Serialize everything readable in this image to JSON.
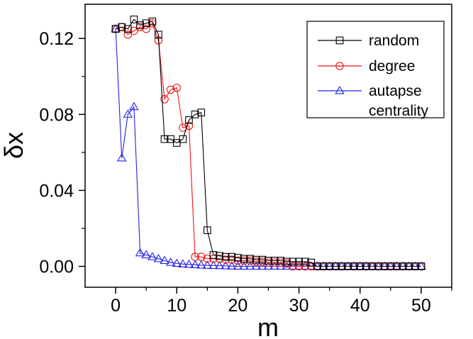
{
  "chart_data": {
    "type": "line",
    "xlabel": "m",
    "ylabel": "δx",
    "xlim": [
      -5,
      55
    ],
    "ylim": [
      -0.011,
      0.138
    ],
    "xticks": [
      "0",
      "10",
      "20",
      "30",
      "40",
      "50"
    ],
    "yticks": [
      "0.00",
      "0.04",
      "0.08",
      "0.12"
    ],
    "legend_position": "top-right",
    "series": [
      {
        "name": "random",
        "color": "#000000",
        "marker": "square",
        "x": [
          0,
          1,
          2,
          3,
          4,
          5,
          6,
          7,
          8,
          9,
          10,
          11,
          12,
          13,
          14,
          15,
          16,
          17,
          18,
          19,
          20,
          21,
          22,
          23,
          24,
          25,
          26,
          27,
          28,
          29,
          30,
          31,
          32,
          33,
          34,
          35,
          36,
          37,
          38,
          39,
          40,
          41,
          42,
          43,
          44,
          45,
          46,
          47,
          48,
          49,
          50
        ],
        "y": [
          0.125,
          0.126,
          0.125,
          0.13,
          0.127,
          0.128,
          0.129,
          0.122,
          0.067,
          0.067,
          0.065,
          0.067,
          0.077,
          0.08,
          0.081,
          0.019,
          0.006,
          0.0055,
          0.005,
          0.005,
          0.0045,
          0.004,
          0.004,
          0.0035,
          0.0035,
          0.003,
          0.003,
          0.003,
          0.0025,
          0.0025,
          0.0025,
          0.0025,
          0.002,
          0.0,
          0.0,
          0.0,
          0.0,
          0.0,
          0.0,
          0.0,
          0.0,
          0.0,
          0.0,
          0.0,
          0.0,
          0.0,
          0.0,
          0.0,
          0.0,
          0.0,
          0.0
        ]
      },
      {
        "name": "degree",
        "color": "#ee1111",
        "marker": "circle",
        "x": [
          0,
          1,
          2,
          3,
          4,
          5,
          6,
          7,
          8,
          9,
          10,
          11,
          12,
          13,
          14,
          15,
          16,
          17,
          18,
          19,
          20,
          21,
          22,
          23,
          24,
          25,
          26,
          27,
          28,
          29,
          30,
          31,
          32,
          33,
          34,
          35,
          36,
          37,
          38,
          39,
          40,
          41,
          42,
          43,
          44,
          45,
          46,
          47,
          48,
          49,
          50
        ],
        "y": [
          0.125,
          0.126,
          0.122,
          0.124,
          0.126,
          0.125,
          0.128,
          0.119,
          0.088,
          0.093,
          0.094,
          0.073,
          0.074,
          0.005,
          0.005,
          0.004,
          0.004,
          0.004,
          0.0035,
          0.0035,
          0.003,
          0.003,
          0.003,
          0.0025,
          0.0025,
          0.002,
          0.002,
          0.002,
          0.0015,
          0.0,
          0.0,
          0.0,
          0.0,
          0.0,
          0.0,
          0.0,
          0.0,
          0.0,
          0.0,
          0.0,
          0.0,
          0.0,
          0.0,
          0.0,
          0.0,
          0.0,
          0.0,
          0.0,
          0.0,
          0.0,
          0.0
        ]
      },
      {
        "name": "autapse\ncentrality",
        "color": "#2222dd",
        "marker": "triangle",
        "x": [
          0,
          1,
          2,
          3,
          4,
          5,
          6,
          7,
          8,
          9,
          10,
          11,
          12,
          13,
          14,
          15,
          16,
          17,
          18,
          19,
          20,
          21,
          22,
          23,
          24,
          25,
          26,
          27,
          28,
          29,
          30,
          31,
          32,
          33,
          34,
          35,
          36,
          37,
          38,
          39,
          40,
          41,
          42,
          43,
          44,
          45,
          46,
          47,
          48,
          49,
          50
        ],
        "y": [
          0.125,
          0.057,
          0.08,
          0.084,
          0.007,
          0.006,
          0.005,
          0.004,
          0.003,
          0.002,
          0.0015,
          0.0012,
          0.001,
          0.0008,
          0.0006,
          0.0005,
          0.0004,
          0.0003,
          0.0002,
          0.0001,
          0.0,
          0.0,
          0.0,
          0.0,
          0.0,
          0.0,
          0.0,
          0.0,
          0.0,
          0.0,
          0.0,
          0.0,
          0.0,
          0.0,
          0.0,
          0.0,
          0.0,
          0.0,
          0.0,
          0.0,
          0.0,
          0.0,
          0.0,
          0.0,
          0.0,
          0.0,
          0.0,
          0.0,
          0.0,
          0.0,
          0.0
        ]
      }
    ]
  }
}
